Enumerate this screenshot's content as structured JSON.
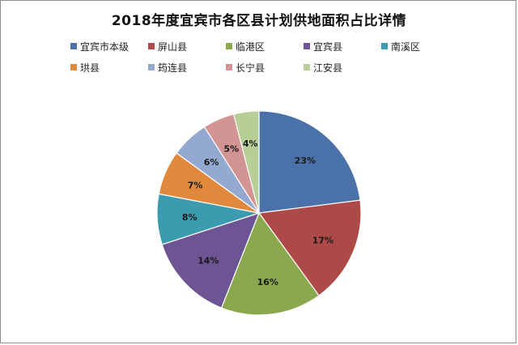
{
  "chart_data": {
    "type": "pie",
    "title": "2018年度宜宾市各区县计划供地面积占比详情",
    "legend_position": "top",
    "slices": [
      {
        "name": "宜宾市本级",
        "value": 23,
        "label": "23%",
        "color": "#4a72a8"
      },
      {
        "name": "屏山县",
        "value": 17,
        "label": "17%",
        "color": "#ad4a47"
      },
      {
        "name": "临港区",
        "value": 16,
        "label": "16%",
        "color": "#8aa84d"
      },
      {
        "name": "宜宾县",
        "value": 14,
        "label": "14%",
        "color": "#6d5492"
      },
      {
        "name": "南溪区",
        "value": 8,
        "label": "8%",
        "color": "#3d9bb0"
      },
      {
        "name": "珙县",
        "value": 7,
        "label": "7%",
        "color": "#e0893d"
      },
      {
        "name": "筠连县",
        "value": 6,
        "label": "6%",
        "color": "#93a9d0"
      },
      {
        "name": "长宁县",
        "value": 5,
        "label": "5%",
        "color": "#d29593"
      },
      {
        "name": "江安县",
        "value": 4,
        "label": "4%",
        "color": "#b8ce97"
      }
    ]
  }
}
